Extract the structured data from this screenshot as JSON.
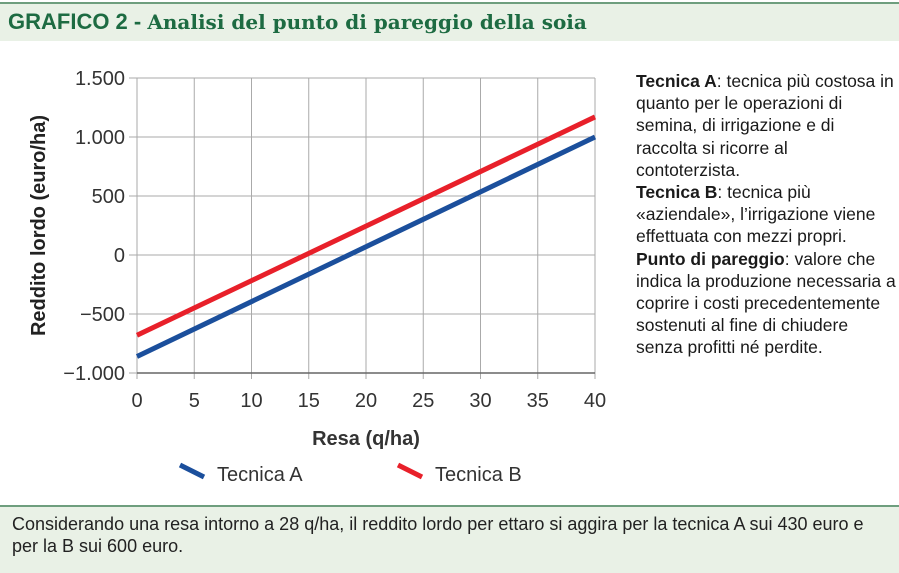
{
  "title": {
    "prefix": "GRAFICO 2 - ",
    "text": "Analisi del punto di pareggio della soia"
  },
  "chart_data": {
    "type": "line",
    "xlabel": "Resa (q/ha)",
    "ylabel": "Reddito lordo (euro/ha)",
    "xlim": [
      0,
      40
    ],
    "ylim": [
      -1000,
      1500
    ],
    "xticks": [
      0,
      5,
      10,
      15,
      20,
      25,
      30,
      35,
      40
    ],
    "yticks": [
      -1000,
      -500,
      0,
      500,
      1000,
      1500
    ],
    "xtick_labels": [
      "0",
      "5",
      "10",
      "15",
      "20",
      "25",
      "30",
      "35",
      "40"
    ],
    "ytick_labels": [
      "−1.000",
      "−500",
      "0",
      "500",
      "1.000",
      "1.500"
    ],
    "grid": true,
    "legend_position": "bottom",
    "series": [
      {
        "name": "Tecnica A",
        "color": "#1b4f9c",
        "x": [
          0,
          40
        ],
        "y": [
          -860,
          1000
        ]
      },
      {
        "name": "Tecnica B",
        "color": "#e8202a",
        "x": [
          0,
          40
        ],
        "y": [
          -680,
          1170
        ]
      }
    ]
  },
  "description": {
    "a_term": "Tecnica A",
    "a_text": ": tecnica più costosa in quanto per le operazioni di semina, di irrigazione e di raccolta si ricorre al contoterzista.",
    "b_term": "Tecnica B",
    "b_text": ": tecnica più «aziendale», l’irrigazione viene effettuata con mezzi propri.",
    "p_term": "Punto di pareggio",
    "p_text": ": valore che indica la produzione necessaria a coprire i costi precedentemente sostenuti al fine di chiudere senza profitti né perdite."
  },
  "caption": "Considerando una resa intorno a 28 q/ha, il reddito lordo per ettaro si aggira per la tecnica A sui 430 euro e per la B sui 600 euro."
}
